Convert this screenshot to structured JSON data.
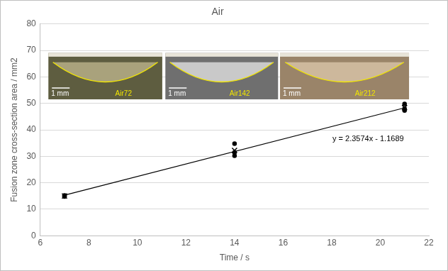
{
  "chart_data": {
    "type": "scatter",
    "title": "Air",
    "x_label": "Time / s",
    "y_label": "Fusion zone cross-section area / mm2",
    "xlim": [
      6,
      22
    ],
    "xticks": [
      6,
      8,
      10,
      12,
      14,
      16,
      18,
      20,
      22
    ],
    "ylim": [
      0,
      80
    ],
    "yticks": [
      0,
      10,
      20,
      30,
      40,
      50,
      60,
      70,
      80
    ],
    "grid": "y",
    "series": [
      {
        "type": "scatter",
        "color": "#000000",
        "marker": "circle",
        "x": [
          7,
          7,
          7,
          14,
          14,
          14,
          21,
          21,
          21
        ],
        "values": [
          15.2,
          15.0,
          14.8,
          34.8,
          31.5,
          30.2,
          49.8,
          48.0,
          47.3
        ]
      },
      {
        "type": "scatter",
        "color": "#000000",
        "marker": "cross",
        "x": [
          7,
          14,
          21
        ],
        "values": [
          15.0,
          32.2,
          48.4
        ]
      },
      {
        "type": "line",
        "color": "#000000",
        "marker": "none",
        "line_style": "solid",
        "x": [
          7,
          21
        ],
        "values": [
          15.3,
          48.3
        ]
      }
    ],
    "annotations": [
      {
        "text": "y = 2.3574x - 1.1689"
      }
    ],
    "insets": [
      {
        "label": "Air72",
        "scale_label": "1 mm"
      },
      {
        "label": "Air142",
        "scale_label": "1 mm"
      },
      {
        "label": "Air212",
        "scale_label": "1 mm"
      }
    ]
  }
}
